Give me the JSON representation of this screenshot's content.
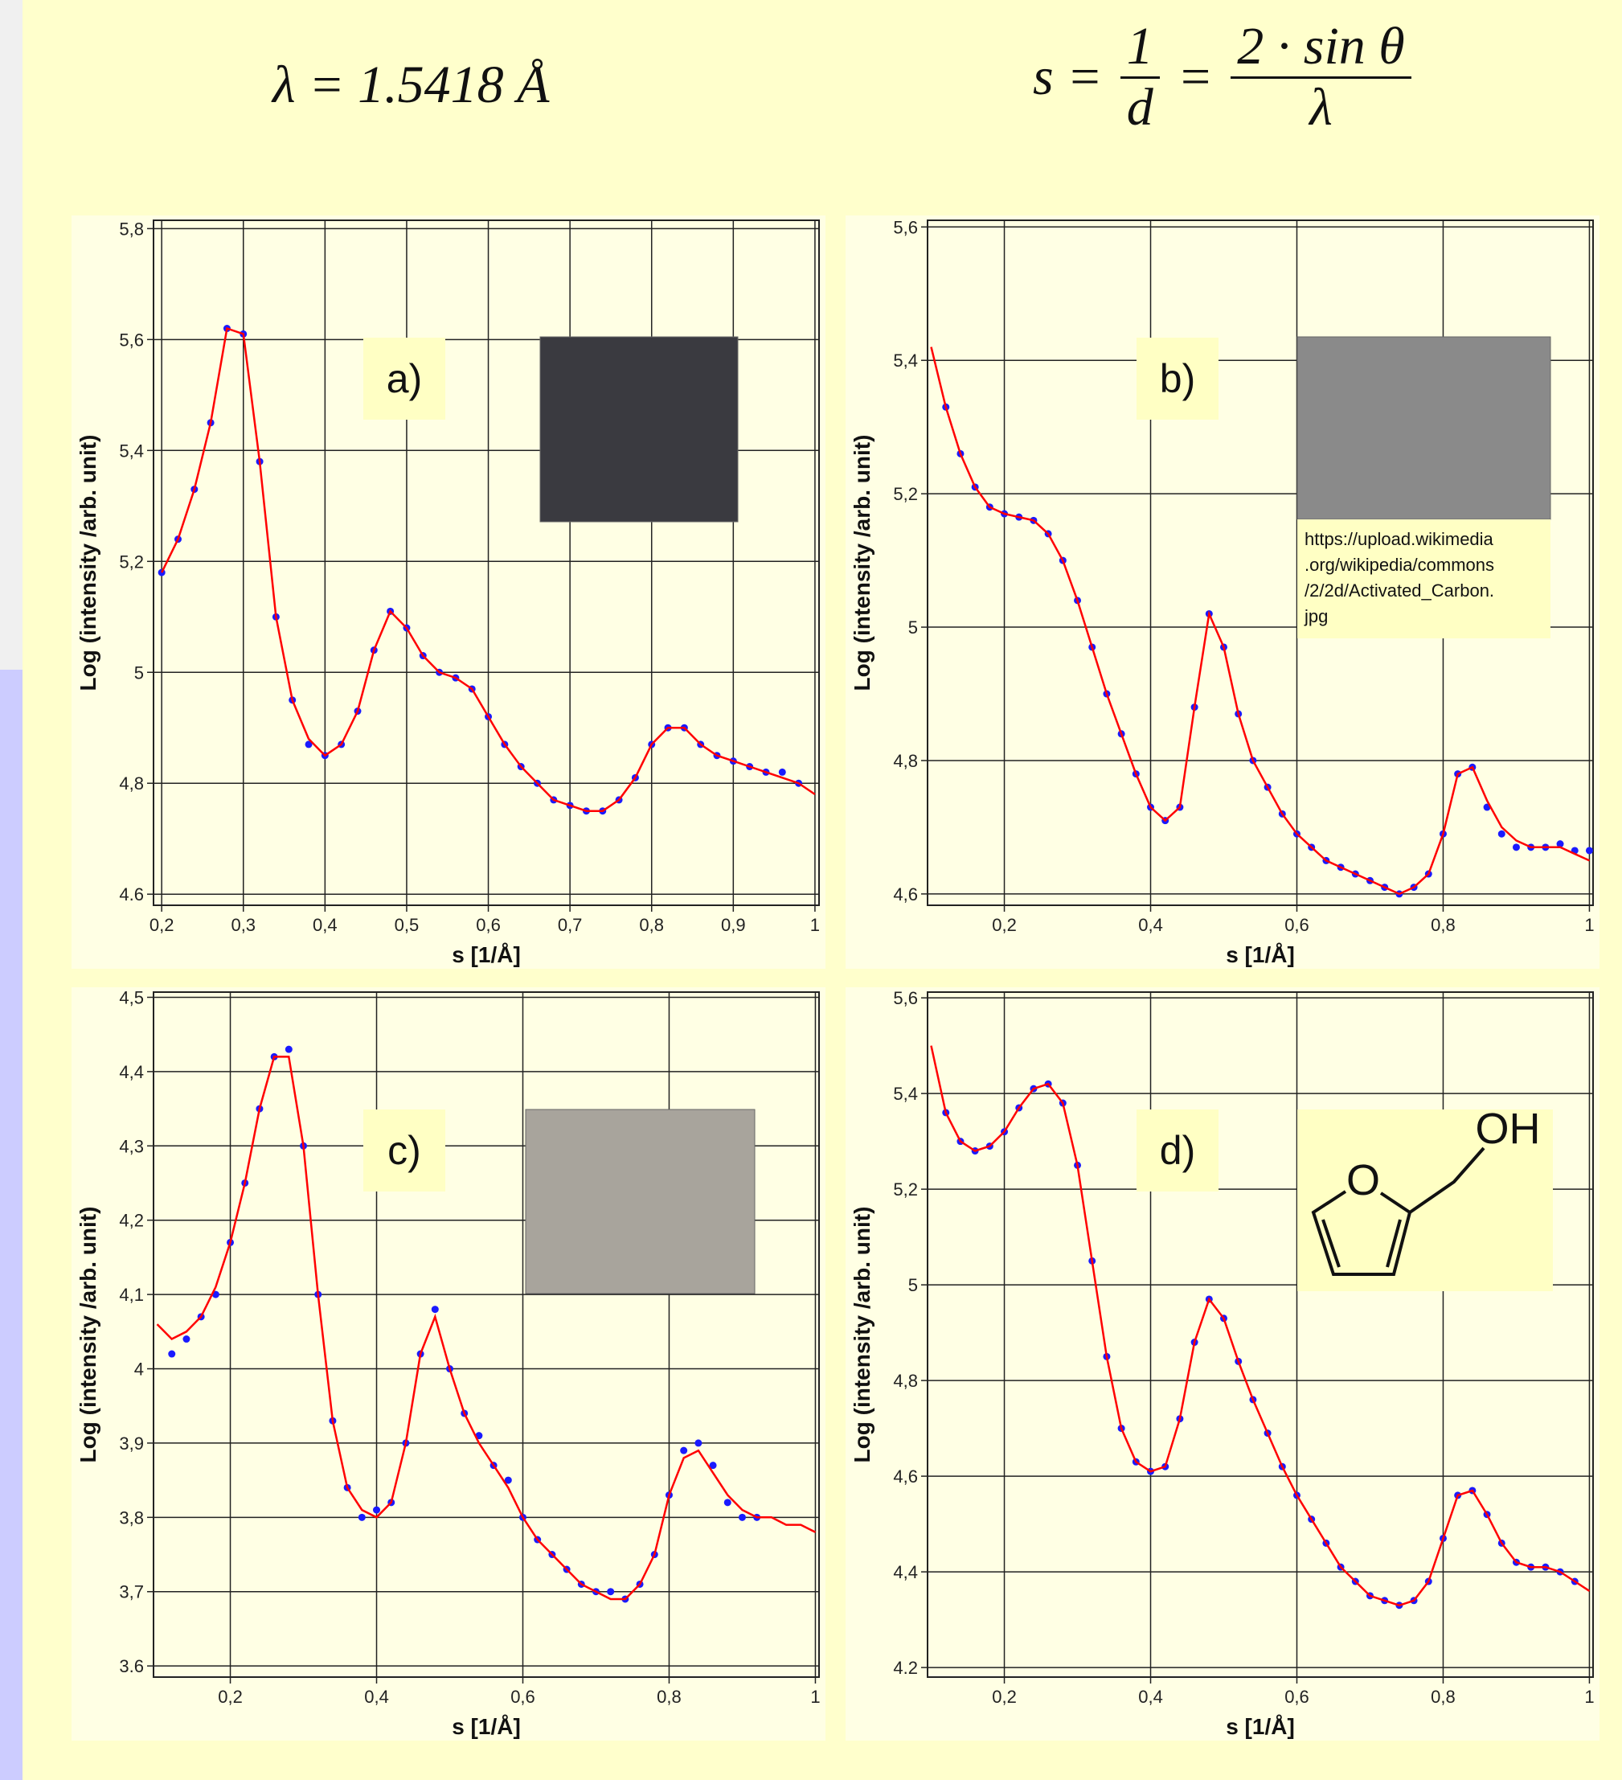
{
  "formulas": {
    "wavelength": "λ = 1.5418 Å",
    "s_def": {
      "lhs": "s =",
      "frac1": {
        "num": "1",
        "den": "d"
      },
      "eq": "=",
      "frac2": {
        "num": "2 · sin θ",
        "den": "λ"
      }
    }
  },
  "chart_data": [
    {
      "type": "line",
      "panel_label": "a)",
      "xlabel": "s [1/Å]",
      "ylabel": "Log (intensity /arb. unit)",
      "grid": true,
      "x": [
        0.2,
        0.22,
        0.24,
        0.26,
        0.28,
        0.3,
        0.32,
        0.34,
        0.36,
        0.38,
        0.4,
        0.42,
        0.44,
        0.46,
        0.48,
        0.5,
        0.52,
        0.54,
        0.56,
        0.58,
        0.6,
        0.62,
        0.64,
        0.66,
        0.68,
        0.7,
        0.72,
        0.74,
        0.76,
        0.78,
        0.8,
        0.82,
        0.84,
        0.86,
        0.88,
        0.9,
        0.92,
        0.94,
        0.96,
        0.98,
        1.0
      ],
      "series": [
        {
          "color": "#1a1aff",
          "style": "dots",
          "values": [
            5.18,
            5.24,
            5.33,
            5.45,
            5.62,
            5.61,
            5.38,
            5.1,
            4.95,
            4.87,
            4.85,
            4.87,
            4.93,
            5.04,
            5.11,
            5.08,
            5.03,
            5.0,
            4.99,
            4.97,
            4.92,
            4.87,
            4.83,
            4.8,
            4.77,
            4.76,
            4.75,
            4.75,
            4.77,
            4.81,
            4.87,
            4.9,
            4.9,
            4.87,
            4.85,
            4.84,
            4.83,
            4.82,
            4.82,
            4.8,
            null
          ]
        },
        {
          "color": "#ff0000",
          "style": "line",
          "values": [
            5.18,
            5.24,
            5.33,
            5.45,
            5.62,
            5.61,
            5.38,
            5.1,
            4.95,
            4.88,
            4.85,
            4.87,
            4.93,
            5.04,
            5.11,
            5.08,
            5.03,
            5.0,
            4.99,
            4.97,
            4.92,
            4.87,
            4.83,
            4.8,
            4.77,
            4.76,
            4.75,
            4.75,
            4.77,
            4.81,
            4.87,
            4.9,
            4.9,
            4.87,
            4.85,
            4.84,
            4.83,
            4.82,
            4.81,
            4.8,
            4.78
          ]
        }
      ],
      "xlim": [
        0.19,
        1.005
      ],
      "ylim": [
        4.58,
        5.815
      ],
      "xticks": [
        {
          "value": 0.2,
          "label": "0,2"
        },
        {
          "value": 0.3,
          "label": "0,3"
        },
        {
          "value": 0.4,
          "label": "0,4"
        },
        {
          "value": 0.5,
          "label": "0,5"
        },
        {
          "value": 0.6,
          "label": "0,6"
        },
        {
          "value": 0.7,
          "label": "0,7"
        },
        {
          "value": 0.8,
          "label": "0,8"
        },
        {
          "value": 0.9,
          "label": "0,9"
        },
        1
      ],
      "yticks": [
        {
          "value": 4.6,
          "label": "4.6"
        },
        {
          "value": 4.8,
          "label": "4,8"
        },
        5,
        {
          "value": 5.2,
          "label": "5,2"
        },
        {
          "value": 5.4,
          "label": "5,4"
        },
        {
          "value": 5.6,
          "label": "5,6"
        },
        {
          "value": 5.8,
          "label": "5,8"
        }
      ]
    },
    {
      "type": "line",
      "panel_label": "b)",
      "xlabel": "s [1/Å]",
      "ylabel": "Log (intensity /arb. unit)",
      "grid": true,
      "image_caption": [
        "https://upload.wikimedia",
        ".org/wikipedia/commons",
        "/2/2d/Activated_Carbon.",
        "jpg"
      ],
      "x": [
        0.1,
        0.12,
        0.14,
        0.16,
        0.18,
        0.2,
        0.22,
        0.24,
        0.26,
        0.28,
        0.3,
        0.32,
        0.34,
        0.36,
        0.38,
        0.4,
        0.42,
        0.44,
        0.46,
        0.48,
        0.5,
        0.52,
        0.54,
        0.56,
        0.58,
        0.6,
        0.62,
        0.64,
        0.66,
        0.68,
        0.7,
        0.72,
        0.74,
        0.76,
        0.78,
        0.8,
        0.82,
        0.84,
        0.86,
        0.88,
        0.9,
        0.92,
        0.94,
        0.96,
        0.98,
        1.0
      ],
      "series": [
        {
          "color": "#1a1aff",
          "style": "dots",
          "values": [
            null,
            5.33,
            5.26,
            5.21,
            5.18,
            5.17,
            5.165,
            5.16,
            5.14,
            5.1,
            5.04,
            4.97,
            4.9,
            4.84,
            4.78,
            4.73,
            4.71,
            4.73,
            4.88,
            5.02,
            4.97,
            4.87,
            4.8,
            4.76,
            4.72,
            4.69,
            4.67,
            4.65,
            4.64,
            4.63,
            4.62,
            4.61,
            4.6,
            4.61,
            4.63,
            4.69,
            4.78,
            4.79,
            4.73,
            4.69,
            4.67,
            4.67,
            4.67,
            4.675,
            4.665,
            4.665
          ]
        },
        {
          "color": "#ff0000",
          "style": "line",
          "values": [
            5.42,
            5.33,
            5.26,
            5.21,
            5.18,
            5.17,
            5.165,
            5.16,
            5.14,
            5.1,
            5.04,
            4.97,
            4.9,
            4.84,
            4.78,
            4.73,
            4.71,
            4.73,
            4.88,
            5.02,
            4.97,
            4.87,
            4.8,
            4.76,
            4.72,
            4.69,
            4.67,
            4.65,
            4.64,
            4.63,
            4.62,
            4.61,
            4.6,
            4.61,
            4.63,
            4.69,
            4.78,
            4.79,
            4.74,
            4.7,
            4.68,
            4.67,
            4.67,
            4.67,
            4.66,
            4.65
          ]
        }
      ],
      "xlim": [
        0.095,
        1.005
      ],
      "ylim": [
        4.583,
        5.61
      ],
      "xticks": [
        {
          "value": 0.2,
          "label": "0,2"
        },
        {
          "value": 0.4,
          "label": "0,4"
        },
        {
          "value": 0.6,
          "label": "0,6"
        },
        {
          "value": 0.8,
          "label": "0,8"
        },
        1
      ],
      "yticks": [
        {
          "value": 4.6,
          "label": "4,6"
        },
        {
          "value": 4.8,
          "label": "4,8"
        },
        5,
        {
          "value": 5.2,
          "label": "5,2"
        },
        {
          "value": 5.4,
          "label": "5,4"
        },
        {
          "value": 5.6,
          "label": "5,6"
        }
      ]
    },
    {
      "type": "line",
      "panel_label": "c)",
      "xlabel": "s [1/Å]",
      "ylabel": "Log (intensity /arb. unit)",
      "grid": true,
      "x": [
        0.1,
        0.12,
        0.14,
        0.16,
        0.18,
        0.2,
        0.22,
        0.24,
        0.26,
        0.28,
        0.3,
        0.32,
        0.34,
        0.36,
        0.38,
        0.4,
        0.42,
        0.44,
        0.46,
        0.48,
        0.5,
        0.52,
        0.54,
        0.56,
        0.58,
        0.6,
        0.62,
        0.64,
        0.66,
        0.68,
        0.7,
        0.72,
        0.74,
        0.76,
        0.78,
        0.8,
        0.82,
        0.84,
        0.86,
        0.88,
        0.9,
        0.92,
        0.94,
        0.96,
        0.98,
        1.0
      ],
      "series": [
        {
          "color": "#1a1aff",
          "style": "dots",
          "values": [
            null,
            4.02,
            4.04,
            4.07,
            4.1,
            4.17,
            4.25,
            4.35,
            4.42,
            4.43,
            4.3,
            4.1,
            3.93,
            3.84,
            3.8,
            3.81,
            3.82,
            3.9,
            4.02,
            4.08,
            4.0,
            3.94,
            3.91,
            3.87,
            3.85,
            3.8,
            3.77,
            3.75,
            3.73,
            3.71,
            3.7,
            3.7,
            3.69,
            3.71,
            3.75,
            3.83,
            3.89,
            3.9,
            3.87,
            3.82,
            3.8,
            3.8,
            null,
            null,
            null,
            null
          ]
        },
        {
          "color": "#ff0000",
          "style": "line",
          "values": [
            4.06,
            4.04,
            4.05,
            4.07,
            4.11,
            4.17,
            4.25,
            4.35,
            4.42,
            4.42,
            4.3,
            4.1,
            3.93,
            3.84,
            3.81,
            3.8,
            3.82,
            3.9,
            4.02,
            4.07,
            4.0,
            3.94,
            3.9,
            3.87,
            3.84,
            3.8,
            3.77,
            3.75,
            3.73,
            3.71,
            3.7,
            3.69,
            3.69,
            3.71,
            3.75,
            3.83,
            3.88,
            3.89,
            3.86,
            3.83,
            3.81,
            3.8,
            3.8,
            3.79,
            3.79,
            3.78
          ]
        }
      ],
      "xlim": [
        0.095,
        1.005
      ],
      "ylim": [
        3.585,
        4.507
      ],
      "xticks": [
        {
          "value": 0.2,
          "label": "0,2"
        },
        {
          "value": 0.4,
          "label": "0,4"
        },
        {
          "value": 0.6,
          "label": "0,6"
        },
        {
          "value": 0.8,
          "label": "0,8"
        },
        1
      ],
      "yticks": [
        {
          "value": 3.6,
          "label": "3.6"
        },
        {
          "value": 3.7,
          "label": "3,7"
        },
        {
          "value": 3.8,
          "label": "3,8"
        },
        {
          "value": 3.9,
          "label": "3,9"
        },
        4,
        {
          "value": 4.1,
          "label": "4,1"
        },
        {
          "value": 4.2,
          "label": "4,2"
        },
        {
          "value": 4.3,
          "label": "4,3"
        },
        {
          "value": 4.4,
          "label": "4,4"
        },
        {
          "value": 4.5,
          "label": "4,5"
        }
      ]
    },
    {
      "type": "line",
      "panel_label": "d)",
      "xlabel": "s [1/Å]",
      "ylabel": "Log (intensity /arb. unit)",
      "grid": true,
      "molecule_labels": [
        "O",
        "OH"
      ],
      "x": [
        0.1,
        0.12,
        0.14,
        0.16,
        0.18,
        0.2,
        0.22,
        0.24,
        0.26,
        0.28,
        0.3,
        0.32,
        0.34,
        0.36,
        0.38,
        0.4,
        0.42,
        0.44,
        0.46,
        0.48,
        0.5,
        0.52,
        0.54,
        0.56,
        0.58,
        0.6,
        0.62,
        0.64,
        0.66,
        0.68,
        0.7,
        0.72,
        0.74,
        0.76,
        0.78,
        0.8,
        0.82,
        0.84,
        0.86,
        0.88,
        0.9,
        0.92,
        0.94,
        0.96,
        0.98,
        1.0
      ],
      "series": [
        {
          "color": "#1a1aff",
          "style": "dots",
          "values": [
            null,
            5.36,
            5.3,
            5.28,
            5.29,
            5.32,
            5.37,
            5.41,
            5.42,
            5.38,
            5.25,
            5.05,
            4.85,
            4.7,
            4.63,
            4.61,
            4.62,
            4.72,
            4.88,
            4.97,
            4.93,
            4.84,
            4.76,
            4.69,
            4.62,
            4.56,
            4.51,
            4.46,
            4.41,
            4.38,
            4.35,
            4.34,
            4.33,
            4.34,
            4.38,
            4.47,
            4.56,
            4.57,
            4.52,
            4.46,
            4.42,
            4.41,
            4.41,
            4.4,
            4.38,
            null
          ]
        },
        {
          "color": "#ff0000",
          "style": "line",
          "values": [
            5.5,
            5.36,
            5.3,
            5.28,
            5.29,
            5.32,
            5.37,
            5.41,
            5.42,
            5.38,
            5.25,
            5.05,
            4.85,
            4.7,
            4.63,
            4.61,
            4.62,
            4.72,
            4.88,
            4.97,
            4.93,
            4.84,
            4.76,
            4.69,
            4.62,
            4.56,
            4.51,
            4.46,
            4.41,
            4.38,
            4.35,
            4.34,
            4.33,
            4.34,
            4.38,
            4.47,
            4.56,
            4.57,
            4.52,
            4.46,
            4.42,
            4.41,
            4.41,
            4.4,
            4.38,
            4.36
          ]
        }
      ],
      "xlim": [
        0.095,
        1.005
      ],
      "ylim": [
        4.18,
        5.612
      ],
      "xticks": [
        {
          "value": 0.2,
          "label": "0,2"
        },
        {
          "value": 0.4,
          "label": "0,4"
        },
        {
          "value": 0.6,
          "label": "0,6"
        },
        {
          "value": 0.8,
          "label": "0,8"
        },
        1
      ],
      "yticks": [
        {
          "value": 4.2,
          "label": "4.2"
        },
        {
          "value": 4.4,
          "label": "4,4"
        },
        {
          "value": 4.6,
          "label": "4,6"
        },
        {
          "value": 4.8,
          "label": "4,8"
        },
        5,
        {
          "value": 5.2,
          "label": "5,2"
        },
        {
          "value": 5.4,
          "label": "5,4"
        },
        {
          "value": 5.6,
          "label": "5,6"
        }
      ]
    }
  ]
}
